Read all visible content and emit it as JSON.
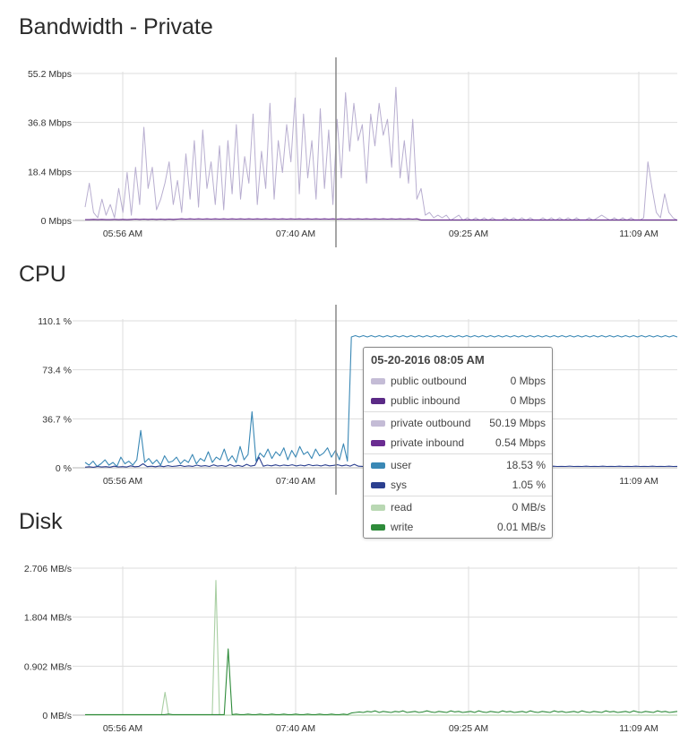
{
  "chart_data": [
    {
      "type": "line",
      "title": "Bandwidth - Private",
      "unit": "Mbps",
      "x_ticks": [
        "05:56 AM",
        "07:40 AM",
        "09:25 AM",
        "11:09 AM"
      ],
      "y_ticks": [
        "0 Mbps",
        "18.4 Mbps",
        "36.8 Mbps",
        "55.2 Mbps"
      ],
      "ylim": [
        0,
        55.2
      ],
      "series": [
        {
          "name": "private outbound",
          "color": "#b8aed0",
          "values": [
            5,
            14,
            3,
            1,
            8,
            2,
            6,
            1,
            12,
            3,
            18,
            2,
            20,
            6,
            35,
            12,
            20,
            4,
            8,
            14,
            22,
            6,
            15,
            3,
            25,
            8,
            30,
            5,
            34,
            12,
            22,
            6,
            28,
            4,
            30,
            10,
            36,
            8,
            24,
            14,
            40,
            6,
            26,
            12,
            44,
            8,
            30,
            18,
            36,
            22,
            46,
            10,
            40,
            16,
            30,
            8,
            42,
            12,
            34,
            6,
            38,
            16,
            48,
            26,
            44,
            30,
            36,
            14,
            40,
            28,
            44,
            32,
            38,
            20,
            50,
            16,
            30,
            14,
            38,
            8,
            12,
            2,
            3,
            1,
            2,
            1,
            2,
            0,
            1,
            2,
            0,
            1,
            0,
            1,
            0,
            1,
            0,
            1,
            0,
            0,
            1,
            0,
            1,
            0,
            1,
            0,
            1,
            0,
            0,
            1,
            0,
            1,
            0,
            1,
            0,
            1,
            0,
            1,
            0,
            0,
            1,
            0,
            1,
            2,
            1,
            0,
            1,
            0,
            1,
            0,
            1,
            0,
            0,
            1,
            22,
            12,
            3,
            1,
            10,
            3,
            1,
            0
          ]
        },
        {
          "name": "private inbound",
          "color": "#6a2c91",
          "values": [
            0.3,
            0.3,
            0.4,
            0.3,
            0.4,
            0.3,
            0.3,
            0.4,
            0.3,
            0.4,
            0.3,
            0.4,
            0.5,
            0.4,
            0.5,
            0.4,
            0.5,
            0.4,
            0.5,
            0.4,
            0.5,
            0.4,
            0.5,
            0.6,
            0.5,
            0.6,
            0.5,
            0.6,
            0.5,
            0.6,
            0.5,
            0.6,
            0.5,
            0.6,
            0.5,
            0.6,
            0.5,
            0.6,
            0.5,
            0.6,
            0.5,
            0.6,
            0.5,
            0.6,
            0.5,
            0.6,
            0.5,
            0.6,
            0.5,
            0.6,
            0.5,
            0.6,
            0.5,
            0.6,
            0.5,
            0.6,
            0.5,
            0.6,
            0.5,
            0.6,
            0.5,
            0.6,
            0.5,
            0.6,
            0.5,
            0.6,
            0.5,
            0.6,
            0.5,
            0.6,
            0.5,
            0.6,
            0.5,
            0.6,
            0.5,
            0.6,
            0.5,
            0.6,
            0.5,
            0.6,
            0.2,
            0.2,
            0.2,
            0.2,
            0.2,
            0.2,
            0.2,
            0.2,
            0.2,
            0.2,
            0.2,
            0.2,
            0.2,
            0.2,
            0.2,
            0.2,
            0.2,
            0.2,
            0.2,
            0.2,
            0.2,
            0.2,
            0.2,
            0.2,
            0.2,
            0.2,
            0.2,
            0.2,
            0.2,
            0.2,
            0.2,
            0.2,
            0.2,
            0.2,
            0.2,
            0.2,
            0.2,
            0.2,
            0.2,
            0.2,
            0.2,
            0.2,
            0.2,
            0.2,
            0.2,
            0.2,
            0.2,
            0.2,
            0.2,
            0.2,
            0.2,
            0.2,
            0.2,
            0.2,
            0.2,
            0.2,
            0.2,
            0.2,
            0.2,
            0.2,
            0.2,
            0.2
          ]
        }
      ]
    },
    {
      "type": "line",
      "title": "CPU",
      "unit": "%",
      "x_ticks": [
        "05:56 AM",
        "07:40 AM",
        "",
        "11:09 AM"
      ],
      "y_ticks": [
        "0 %",
        "36.7 %",
        "73.4 %",
        "110.1 %"
      ],
      "ylim": [
        0,
        110.1
      ],
      "series": [
        {
          "name": "user",
          "color": "#3a88b5",
          "values": [
            4,
            2,
            5,
            1,
            3,
            6,
            2,
            4,
            1,
            8,
            3,
            5,
            2,
            6,
            28,
            4,
            7,
            3,
            6,
            2,
            9,
            4,
            5,
            8,
            3,
            6,
            4,
            10,
            3,
            7,
            5,
            12,
            4,
            8,
            6,
            14,
            5,
            9,
            4,
            16,
            6,
            10,
            42,
            5,
            11,
            8,
            14,
            7,
            12,
            9,
            15,
            6,
            13,
            8,
            16,
            10,
            12,
            7,
            14,
            9,
            11,
            15,
            8,
            13,
            6,
            18,
            5,
            98,
            99,
            98,
            99,
            98,
            99,
            98,
            99,
            98,
            99,
            98,
            99,
            98,
            99,
            98,
            99,
            98,
            99,
            98,
            99,
            98,
            99,
            98,
            99,
            98,
            99,
            98,
            99,
            98,
            99,
            98,
            99,
            98,
            99,
            98,
            99,
            98,
            99,
            98,
            99,
            98,
            99,
            98,
            99,
            98,
            99,
            98,
            99,
            98,
            99,
            98,
            99,
            98,
            99,
            98,
            99,
            98,
            99,
            98,
            99,
            98,
            99,
            98,
            99,
            98,
            99,
            98,
            99,
            98,
            99,
            98,
            99,
            98,
            99,
            98,
            99,
            98,
            99,
            98,
            99,
            98,
            99,
            98
          ]
        },
        {
          "name": "sys",
          "color": "#2b3f8f",
          "values": [
            0.5,
            0.8,
            0.4,
            1,
            0.6,
            0.9,
            0.5,
            1.2,
            0.7,
            0.9,
            0.6,
            1.5,
            0.8,
            1.1,
            3,
            0.9,
            1.2,
            0.8,
            1.4,
            0.9,
            1.6,
            1,
            1.3,
            1.8,
            1,
            1.5,
            1.1,
            2,
            1.2,
            1.6,
            1,
            2.2,
            1.3,
            1.7,
            1.1,
            2.4,
            1.2,
            1.8,
            1,
            2.6,
            1.3,
            1.9,
            8,
            1.2,
            2,
            1.5,
            2.2,
            1.4,
            2.1,
            1.6,
            2.3,
            1.4,
            2,
            1.5,
            2.4,
            1.6,
            2,
            1.4,
            2.2,
            1.5,
            1.8,
            2.3,
            1.5,
            2.1,
            1.3,
            2.6,
            1.2,
            1.1,
            1,
            1.2,
            1,
            1.1,
            1,
            1.2,
            1,
            1.1,
            1,
            1.2,
            1,
            1.1,
            1,
            1.2,
            1,
            1.1,
            1,
            1.2,
            1,
            1.1,
            1,
            1.2,
            1,
            1.1,
            1,
            1.2,
            1,
            1.1,
            1,
            1.2,
            1,
            1.1,
            1,
            1.2,
            1,
            1.1,
            1,
            1.2,
            1,
            1.1,
            1,
            1.2,
            1,
            1.1,
            1,
            1.2,
            1,
            1.1,
            1,
            1.2,
            1,
            1.1,
            1,
            1.2,
            1,
            1.1,
            1,
            1.2,
            1,
            1.1,
            1,
            1.2,
            1,
            1.1,
            1,
            1.2,
            1,
            1.1,
            1,
            1.2,
            1,
            1.1,
            1,
            1.2,
            1,
            1.1
          ]
        }
      ]
    },
    {
      "type": "line",
      "title": "Disk",
      "unit": "MB/s",
      "x_ticks": [
        "05:56 AM",
        "07:40 AM",
        "09:25 AM",
        "11:09 AM"
      ],
      "y_ticks": [
        "0 MB/s",
        "0.902 MB/s",
        "1.804 MB/s",
        "2.706 MB/s"
      ],
      "ylim": [
        0,
        2.706
      ],
      "series": [
        {
          "name": "read",
          "color": "#a9cfa3",
          "values": [
            0,
            0,
            0,
            0,
            0,
            0,
            0,
            0,
            0,
            0,
            0,
            0,
            0,
            0,
            0,
            0,
            0,
            0,
            0,
            0,
            0,
            0,
            0.42,
            0,
            0,
            0,
            0,
            0,
            0,
            0,
            0,
            0,
            0,
            0,
            0,
            0,
            2.48,
            0,
            0,
            0,
            0,
            0,
            0,
            0,
            0,
            0,
            0,
            0,
            0,
            0,
            0,
            0,
            0,
            0,
            0,
            0,
            0,
            0,
            0,
            0,
            0,
            0,
            0,
            0,
            0,
            0,
            0,
            0,
            0,
            0,
            0,
            0,
            0,
            0,
            0,
            0,
            0,
            0,
            0,
            0,
            0,
            0,
            0,
            0,
            0,
            0,
            0,
            0,
            0,
            0,
            0,
            0,
            0,
            0,
            0,
            0,
            0,
            0,
            0,
            0,
            0,
            0,
            0,
            0,
            0,
            0,
            0,
            0,
            0,
            0,
            0,
            0,
            0,
            0,
            0,
            0,
            0,
            0,
            0,
            0,
            0,
            0,
            0,
            0,
            0,
            0,
            0,
            0,
            0,
            0,
            0,
            0,
            0,
            0,
            0,
            0,
            0,
            0,
            0,
            0,
            0,
            0,
            0,
            0,
            0,
            0,
            0,
            0,
            0,
            0,
            0,
            0,
            0,
            0,
            0,
            0,
            0,
            0,
            0,
            0,
            0,
            0,
            0,
            0
          ]
        },
        {
          "name": "write",
          "color": "#2e8b3a",
          "values": [
            0.01,
            0.01,
            0.01,
            0.01,
            0.01,
            0.01,
            0.01,
            0.01,
            0.01,
            0.01,
            0.01,
            0.01,
            0.01,
            0.01,
            0.01,
            0.01,
            0.01,
            0.01,
            0.01,
            0.01,
            0.01,
            0.02,
            0.01,
            0.01,
            0.01,
            0.01,
            0.01,
            0.01,
            0.01,
            0.01,
            0.01,
            0.01,
            0.01,
            0.01,
            0.01,
            0.01,
            1.22,
            0.01,
            0.02,
            0.01,
            0.01,
            0.02,
            0.01,
            0.01,
            0.02,
            0.01,
            0.01,
            0.02,
            0.01,
            0.01,
            0.02,
            0.01,
            0.01,
            0.02,
            0.01,
            0.01,
            0.02,
            0.01,
            0.01,
            0.02,
            0.01,
            0.01,
            0.02,
            0.01,
            0.01,
            0.02,
            0.01,
            0.04,
            0.05,
            0.06,
            0.05,
            0.07,
            0.06,
            0.08,
            0.05,
            0.07,
            0.06,
            0.05,
            0.07,
            0.06,
            0.08,
            0.05,
            0.06,
            0.07,
            0.05,
            0.06,
            0.08,
            0.06,
            0.05,
            0.07,
            0.06,
            0.05,
            0.08,
            0.06,
            0.07,
            0.05,
            0.06,
            0.07,
            0.05,
            0.08,
            0.06,
            0.05,
            0.07,
            0.06,
            0.05,
            0.08,
            0.06,
            0.07,
            0.05,
            0.06,
            0.07,
            0.05,
            0.08,
            0.06,
            0.05,
            0.07,
            0.06,
            0.05,
            0.08,
            0.06,
            0.07,
            0.05,
            0.06,
            0.07,
            0.05,
            0.08,
            0.06,
            0.05,
            0.07,
            0.06,
            0.05,
            0.08,
            0.06,
            0.07,
            0.05,
            0.06,
            0.07,
            0.05,
            0.08,
            0.06,
            0.05,
            0.07,
            0.06,
            0.05,
            0.08,
            0.06,
            0.07,
            0.05,
            0.06,
            0.07
          ]
        }
      ]
    }
  ],
  "tooltip": {
    "title": "05-20-2016 08:05 AM",
    "groups": [
      [
        {
          "label": "public outbound",
          "value": "0 Mbps",
          "color": "#c4bcd6"
        },
        {
          "label": "public inbound",
          "value": "0 Mbps",
          "color": "#5b2a86"
        }
      ],
      [
        {
          "label": "private outbound",
          "value": "50.19 Mbps",
          "color": "#c4bcd6"
        },
        {
          "label": "private inbound",
          "value": "0.54 Mbps",
          "color": "#6a2c91"
        }
      ],
      [
        {
          "label": "user",
          "value": "18.53 %",
          "color": "#3a88b5"
        },
        {
          "label": "sys",
          "value": "1.05 %",
          "color": "#2b3f8f"
        }
      ],
      [
        {
          "label": "read",
          "value": "0 MB/s",
          "color": "#b9d8b3"
        },
        {
          "label": "write",
          "value": "0.01 MB/s",
          "color": "#2e8b3a"
        }
      ]
    ]
  }
}
